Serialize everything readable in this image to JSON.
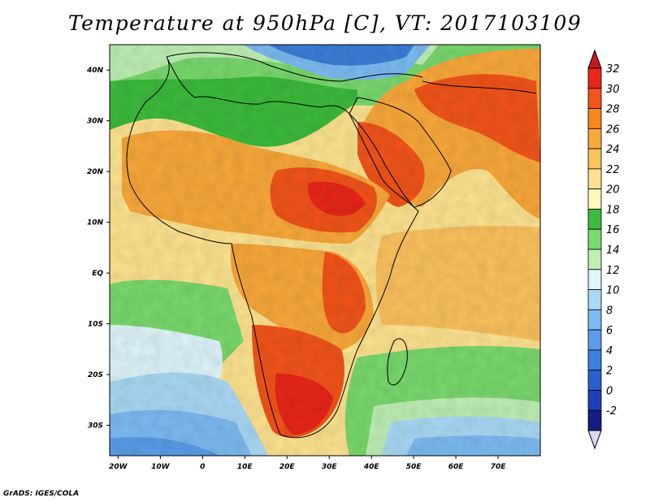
{
  "title": "Temperature at 950hPa [C], VT: 2017103109",
  "credit": "GrADS: IGES/COLA",
  "map": {
    "type": "filled-contour-map",
    "lon_range": [
      -22,
      80
    ],
    "lat_range": [
      -36,
      45
    ],
    "lon_ticks": [
      {
        "lon": -20,
        "label": "20W"
      },
      {
        "lon": -10,
        "label": "10W"
      },
      {
        "lon": 0,
        "label": "0"
      },
      {
        "lon": 10,
        "label": "10E"
      },
      {
        "lon": 20,
        "label": "20E"
      },
      {
        "lon": 30,
        "label": "30E"
      },
      {
        "lon": 40,
        "label": "40E"
      },
      {
        "lon": 50,
        "label": "50E"
      },
      {
        "lon": 60,
        "label": "60E"
      },
      {
        "lon": 70,
        "label": "70E"
      }
    ],
    "lat_ticks": [
      {
        "lat": 40,
        "label": "40N"
      },
      {
        "lat": 30,
        "label": "30N"
      },
      {
        "lat": 20,
        "label": "20N"
      },
      {
        "lat": 10,
        "label": "10N"
      },
      {
        "lat": 0,
        "label": "EQ"
      },
      {
        "lat": -10,
        "label": "10S"
      },
      {
        "lat": -20,
        "label": "20S"
      },
      {
        "lat": -30,
        "label": "30S"
      }
    ]
  },
  "colorbar": {
    "levels": [
      "32",
      "30",
      "28",
      "26",
      "24",
      "22",
      "20",
      "18",
      "16",
      "14",
      "12",
      "10",
      "8",
      "6",
      "4",
      "2",
      "0",
      "-2"
    ],
    "colors": [
      "#e8261a",
      "#f2541a",
      "#f7881e",
      "#f9a83a",
      "#fbc25e",
      "#fde390",
      "#fef8bc",
      "#3cbb3c",
      "#7ad96e",
      "#bfefb4",
      "#def5f9",
      "#a9d8f5",
      "#7cbbf2",
      "#5a9ee9",
      "#3c7ed9",
      "#2a5fcb",
      "#1f3fb8",
      "#151c82"
    ],
    "top_arrow_color": "#c8181b",
    "bottom_arrow_color": "#d8d8f5"
  }
}
